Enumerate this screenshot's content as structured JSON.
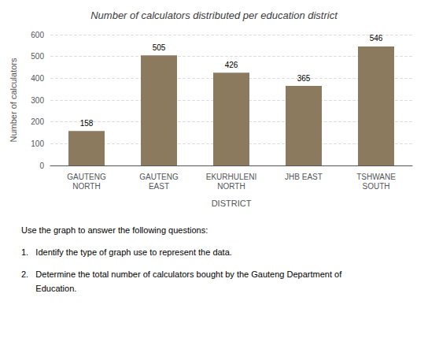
{
  "chart_data": {
    "type": "bar",
    "title": "Number of calculators distributed per education district",
    "categories": [
      "GAUTENG\nNORTH",
      "GAUTENG\nEAST",
      "EKURHULENI\nNORTH",
      "JHB EAST",
      "TSHWANE\nSOUTH"
    ],
    "values": [
      158,
      505,
      426,
      365,
      546
    ],
    "color": "#8c7a5e",
    "xlabel": "DISTRICT",
    "ylabel": "Number of calculators",
    "ylim": [
      0,
      600
    ],
    "yticks": [
      0,
      100,
      200,
      300,
      400,
      500,
      600
    ],
    "grid": true,
    "data_labels": true,
    "annotations": [
      "Use the graph to answer the following questions:",
      "1.   Identify the type of graph use to represent the data.",
      "2.   Determine the total number of calculators bought by the Gauteng Department of",
      "      Education."
    ]
  }
}
